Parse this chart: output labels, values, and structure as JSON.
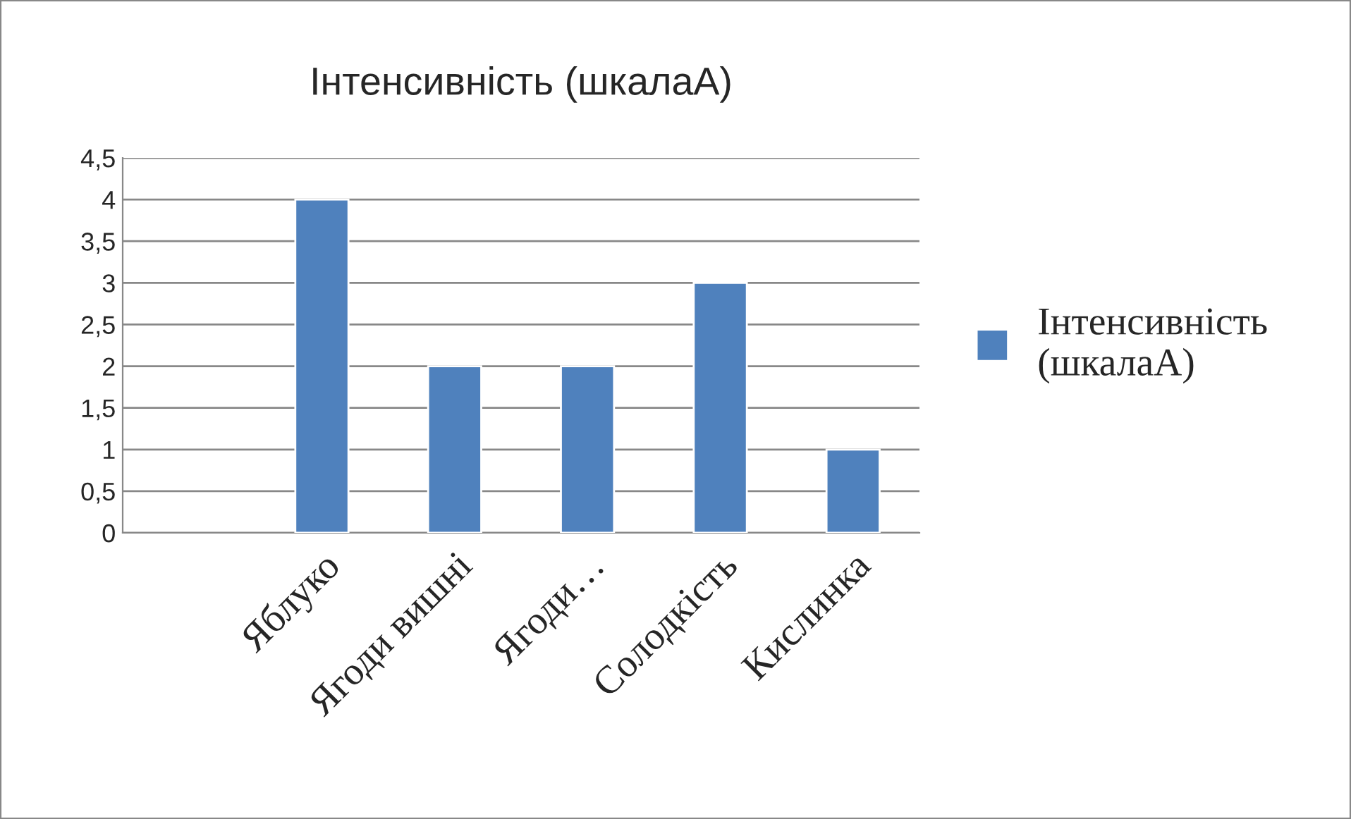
{
  "chart_data": {
    "type": "bar",
    "title": "Інтенсивність (шкалаA)",
    "categories": [
      null,
      "Яблуко",
      "Ягоди вишні",
      "Ягоди…",
      "Солодкість",
      "Кислинка"
    ],
    "series": [
      {
        "name": "Інтенсивність (шкалаA)",
        "color": "#4f81bd",
        "values": [
          null,
          4,
          2,
          2,
          3,
          1
        ]
      }
    ],
    "ylim": [
      0,
      4.5
    ],
    "yticks": [
      0,
      {
        "value": 0.5,
        "label": "0,5"
      },
      1,
      {
        "value": 1.5,
        "label": "1,5"
      },
      2,
      {
        "value": 2.5,
        "label": "2,5"
      },
      3,
      {
        "value": 3.5,
        "label": "3,5"
      },
      4,
      {
        "value": 4.5,
        "label": "4,5"
      }
    ],
    "grid": "y",
    "legend": "right"
  }
}
